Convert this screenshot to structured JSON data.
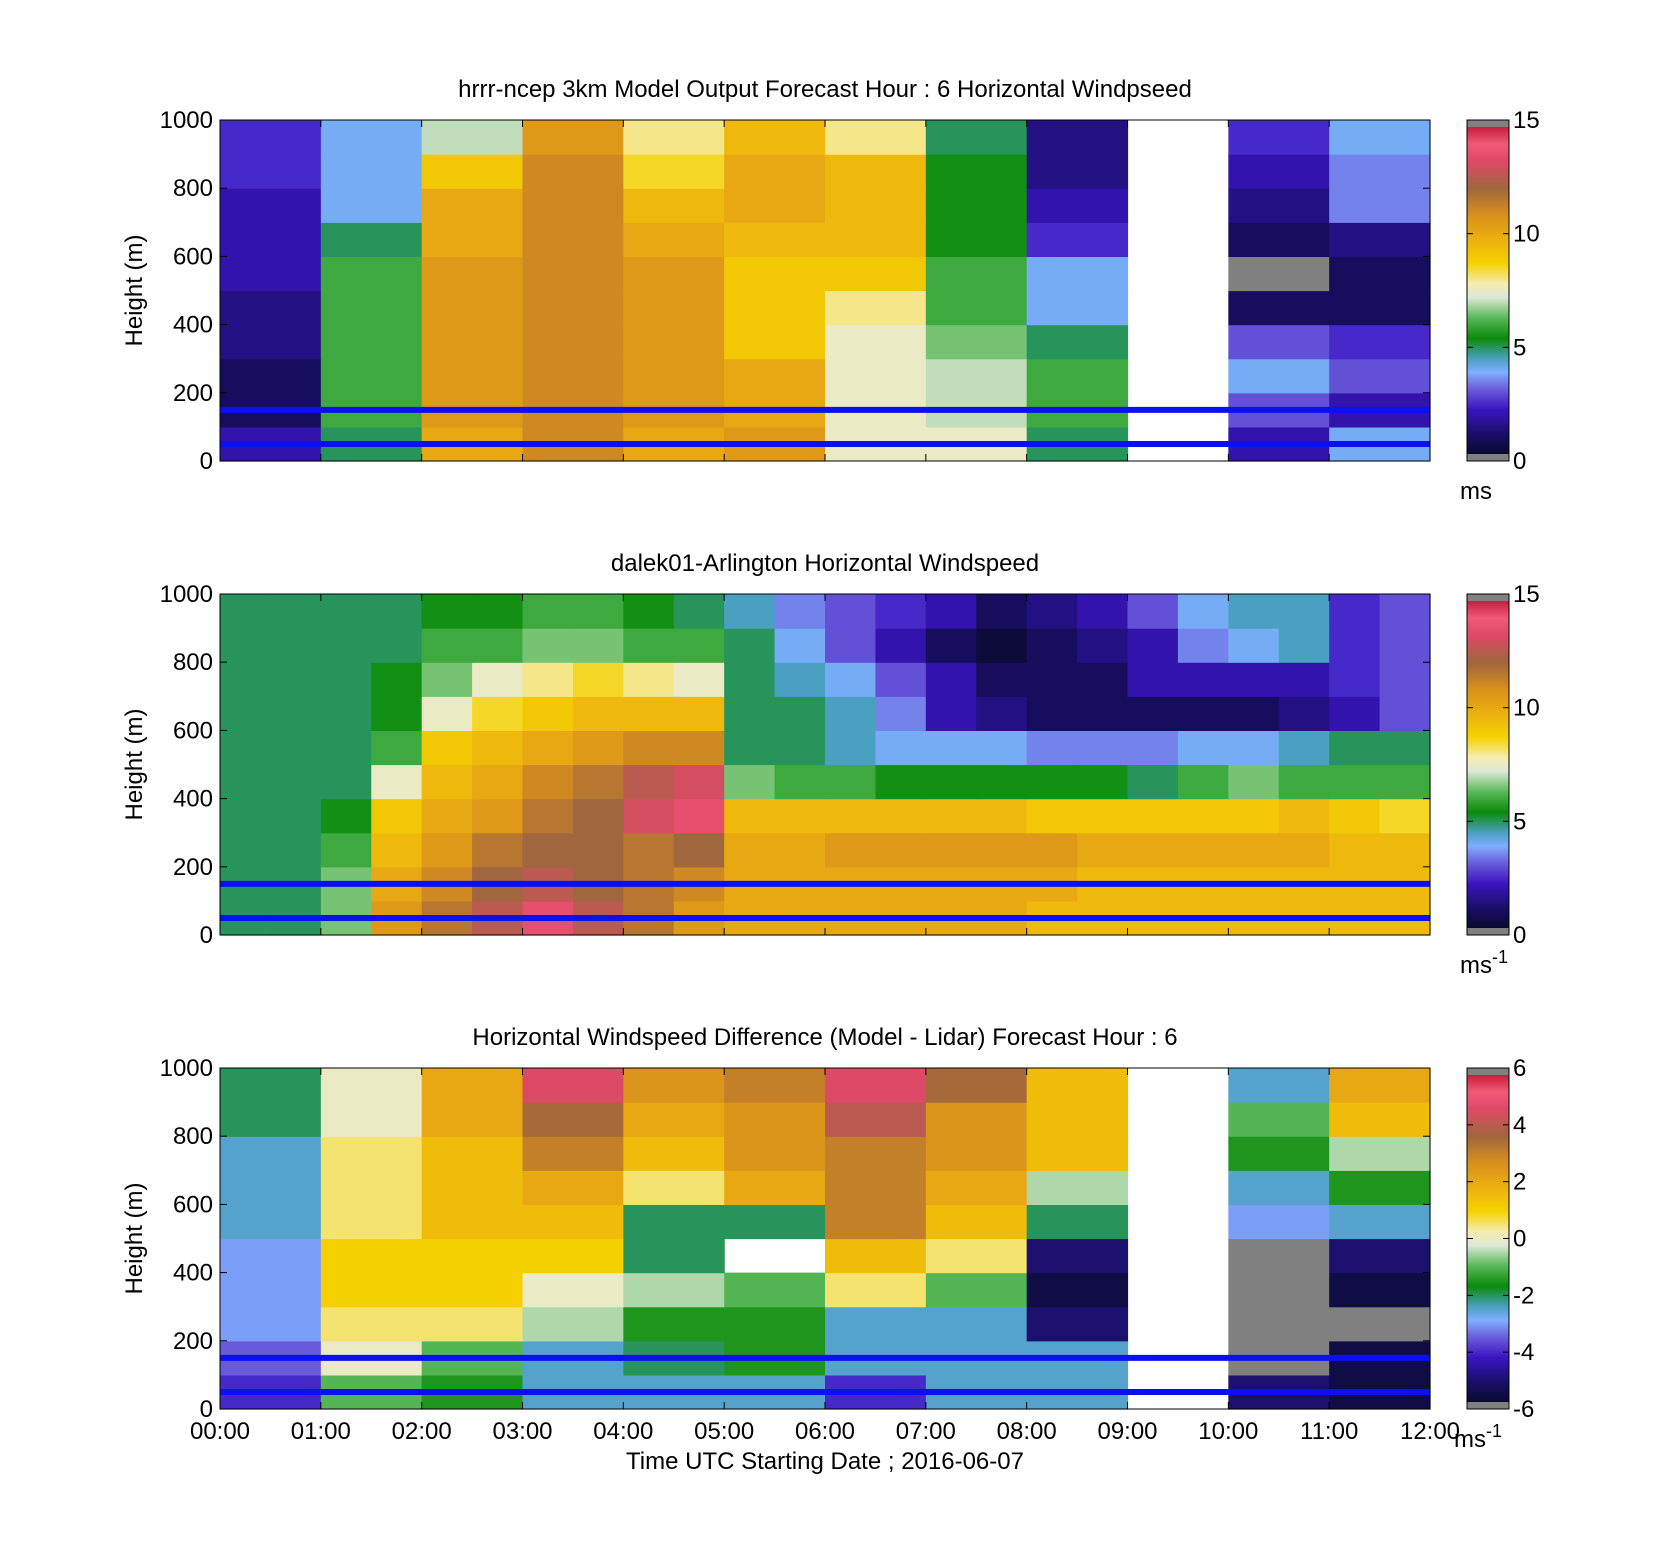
{
  "chart_data": [
    {
      "type": "heatmap",
      "title": "hrrr-ncep 3km Model Output   Forecast Hour : 6 Horizontal Windpseed",
      "ylabel": "Height (m)",
      "xlabel": "",
      "ylim": [
        0,
        1000
      ],
      "y_ticks": [
        "0",
        "200",
        "400",
        "600",
        "800",
        "1000"
      ],
      "x_ticks": [],
      "colorbar": {
        "ticks": [
          "0",
          "5",
          "10",
          "15"
        ],
        "range": [
          0,
          15
        ],
        "unit": "ms",
        "unit_sup": ""
      },
      "x_hours": [
        0,
        1,
        2,
        3,
        4,
        5,
        6,
        7,
        8,
        9,
        10,
        11
      ],
      "y_heights": [
        50,
        150,
        250,
        350,
        450,
        550,
        650,
        750,
        850,
        950
      ],
      "values": [
        [
          2.0,
          5.0,
          10.0,
          11.0,
          10.0,
          10.5,
          7.5,
          7.5,
          5.0,
          null,
          2.0,
          4.0
        ],
        [
          1.0,
          6.0,
          10.5,
          11.0,
          10.5,
          10.0,
          7.5,
          7.0,
          6.0,
          null,
          3.0,
          2.0
        ],
        [
          1.0,
          6.0,
          10.5,
          11.0,
          10.5,
          10.0,
          7.5,
          7.0,
          6.0,
          null,
          4.0,
          3.0
        ],
        [
          1.5,
          6.0,
          10.5,
          11.0,
          10.5,
          9.0,
          7.5,
          6.5,
          5.0,
          null,
          3.0,
          2.5
        ],
        [
          1.5,
          6.0,
          10.5,
          11.0,
          10.5,
          9.0,
          8.0,
          6.0,
          4.0,
          null,
          1.0,
          1.0
        ],
        [
          2.0,
          6.0,
          10.5,
          11.0,
          10.5,
          9.0,
          9.0,
          6.0,
          4.0,
          null,
          0.0,
          1.0
        ],
        [
          2.0,
          5.0,
          10.0,
          11.0,
          10.0,
          9.5,
          9.5,
          5.5,
          2.5,
          null,
          1.0,
          1.5
        ],
        [
          2.0,
          4.0,
          10.0,
          11.0,
          9.5,
          10.0,
          9.5,
          5.5,
          2.0,
          null,
          1.5,
          3.5
        ],
        [
          2.5,
          4.0,
          9.0,
          11.0,
          8.5,
          10.0,
          9.5,
          5.5,
          1.5,
          null,
          2.0,
          3.5
        ],
        [
          2.5,
          4.0,
          7.0,
          10.5,
          8.0,
          9.5,
          8.0,
          5.0,
          1.5,
          null,
          2.5,
          4.0
        ]
      ],
      "reference_lines_m": [
        150,
        50
      ]
    },
    {
      "type": "heatmap",
      "title": "dalek01-Arlington  Horizontal Windspeed",
      "ylabel": "Height (m)",
      "xlabel": "",
      "ylim": [
        0,
        1000
      ],
      "y_ticks": [
        "0",
        "200",
        "400",
        "600",
        "800",
        "1000"
      ],
      "x_ticks": [],
      "colorbar": {
        "ticks": [
          "0",
          "5",
          "10",
          "15"
        ],
        "range": [
          0,
          15
        ],
        "unit": "ms",
        "unit_sup": "-1"
      },
      "x_hours": [
        0,
        0.5,
        1,
        1.5,
        2,
        2.5,
        3,
        3.5,
        4,
        4.5,
        5,
        5.5,
        6,
        6.5,
        7,
        7.5,
        8,
        8.5,
        9,
        9.5,
        10,
        10.5,
        11,
        11.5
      ],
      "y_heights": [
        50,
        150,
        250,
        350,
        450,
        550,
        650,
        750,
        850,
        950
      ],
      "values": [
        [
          5.0,
          5.0,
          6.5,
          10.5,
          11.5,
          12.5,
          13.5,
          12.5,
          11.5,
          10.5,
          10.0,
          10.0,
          10.0,
          10.0,
          10.0,
          10.0,
          9.5,
          9.5,
          9.5,
          9.5,
          9.5,
          9.5,
          9.5,
          9.5
        ],
        [
          5.0,
          5.0,
          6.5,
          10.0,
          11.0,
          12.0,
          12.5,
          12.0,
          11.5,
          11.0,
          10.0,
          10.0,
          10.0,
          10.0,
          10.0,
          10.0,
          10.0,
          9.5,
          9.5,
          9.5,
          9.5,
          9.5,
          9.5,
          9.5
        ],
        [
          5.0,
          5.0,
          6.0,
          9.5,
          10.5,
          11.5,
          12.0,
          12.0,
          11.5,
          12.0,
          10.0,
          10.0,
          10.5,
          10.5,
          10.5,
          10.5,
          10.5,
          10.0,
          10.0,
          10.0,
          10.0,
          10.0,
          9.5,
          9.5
        ],
        [
          5.0,
          5.0,
          5.5,
          9.0,
          10.0,
          10.5,
          11.5,
          12.0,
          13.0,
          13.5,
          9.5,
          9.5,
          9.5,
          9.5,
          9.5,
          9.5,
          9.0,
          9.0,
          9.0,
          9.0,
          9.0,
          9.5,
          9.0,
          8.5
        ],
        [
          5.0,
          5.0,
          5.0,
          7.5,
          9.5,
          10.0,
          11.0,
          11.5,
          12.5,
          13.0,
          6.5,
          6.0,
          6.0,
          5.5,
          5.5,
          5.5,
          5.5,
          5.5,
          5.0,
          6.0,
          6.5,
          6.0,
          6.0,
          6.0
        ],
        [
          5.0,
          5.0,
          5.0,
          6.0,
          9.0,
          9.5,
          10.0,
          10.5,
          11.0,
          11.0,
          5.0,
          5.0,
          4.5,
          4.0,
          4.0,
          4.0,
          3.5,
          3.5,
          3.5,
          4.0,
          4.0,
          4.5,
          5.0,
          5.0
        ],
        [
          5.0,
          5.0,
          5.0,
          5.5,
          7.5,
          8.5,
          9.0,
          9.5,
          9.5,
          9.5,
          5.0,
          5.0,
          4.5,
          3.5,
          2.0,
          1.5,
          1.0,
          1.0,
          1.0,
          1.0,
          1.0,
          1.5,
          2.0,
          3.0
        ],
        [
          5.0,
          5.0,
          5.0,
          5.5,
          6.5,
          7.5,
          8.0,
          8.5,
          8.0,
          7.5,
          5.0,
          4.5,
          4.0,
          3.0,
          2.0,
          1.0,
          1.0,
          1.0,
          2.0,
          2.0,
          2.0,
          2.0,
          2.5,
          3.0
        ],
        [
          5.0,
          5.0,
          5.0,
          5.0,
          6.0,
          6.0,
          6.5,
          6.5,
          6.0,
          6.0,
          5.0,
          4.0,
          3.0,
          2.0,
          1.0,
          0.5,
          1.0,
          1.5,
          2.0,
          3.5,
          4.0,
          4.5,
          2.5,
          3.0
        ],
        [
          5.0,
          5.0,
          5.0,
          5.0,
          5.5,
          5.5,
          6.0,
          6.0,
          5.5,
          5.0,
          4.5,
          3.5,
          3.0,
          2.5,
          2.0,
          1.0,
          1.5,
          2.0,
          3.0,
          4.0,
          4.5,
          4.5,
          2.5,
          3.0
        ]
      ],
      "reference_lines_m": [
        150,
        50
      ]
    },
    {
      "type": "heatmap",
      "title": "Horizontal Windspeed Difference (Model - Lidar) Forecast Hour : 6",
      "ylabel": "Height (m)",
      "xlabel": "Time UTC  Starting Date ; 2016-06-07",
      "ylim": [
        0,
        1000
      ],
      "y_ticks": [
        "0",
        "200",
        "400",
        "600",
        "800",
        "1000"
      ],
      "x_ticks": [
        "00:00",
        "01:00",
        "02:00",
        "03:00",
        "04:00",
        "05:00",
        "06:00",
        "07:00",
        "08:00",
        "09:00",
        "10:00",
        "11:00",
        "12:00"
      ],
      "colorbar": {
        "ticks": [
          "-6",
          "-4",
          "-2",
          "0",
          "2",
          "4",
          "6"
        ],
        "range": [
          -6,
          6
        ],
        "unit": "ms",
        "unit_sup": "-1"
      },
      "x_hours": [
        0,
        1,
        2,
        3,
        4,
        5,
        6,
        7,
        8,
        9,
        10,
        11
      ],
      "y_heights": [
        50,
        150,
        250,
        350,
        450,
        550,
        650,
        750,
        850,
        950
      ],
      "values": [
        [
          -4.0,
          -1.0,
          -1.5,
          -2.5,
          -2.5,
          -2.5,
          -4.0,
          -2.5,
          -2.5,
          null,
          -5.0,
          -5.5
        ],
        [
          -3.5,
          0.0,
          -1.0,
          -2.5,
          -2.0,
          -1.5,
          -2.5,
          -2.5,
          -2.5,
          null,
          -6.0,
          -5.5
        ],
        [
          -3.0,
          0.5,
          0.5,
          -0.5,
          -1.5,
          -1.5,
          -2.5,
          -2.5,
          -5.0,
          null,
          -6.0,
          -6.0
        ],
        [
          -3.0,
          1.0,
          1.0,
          0.0,
          -0.5,
          -1.0,
          0.5,
          -1.0,
          -5.5,
          null,
          -6.0,
          -5.5
        ],
        [
          -3.0,
          1.0,
          1.0,
          1.0,
          -2.0,
          null,
          1.5,
          0.5,
          -5.0,
          null,
          -6.0,
          -5.0
        ],
        [
          -2.5,
          0.5,
          1.5,
          1.5,
          -2.0,
          -2.0,
          3.0,
          1.5,
          -2.0,
          null,
          -3.0,
          -2.5
        ],
        [
          -2.5,
          0.5,
          1.5,
          2.0,
          0.5,
          2.0,
          3.0,
          2.0,
          -0.5,
          null,
          -2.5,
          -1.5
        ],
        [
          -2.5,
          0.5,
          1.5,
          3.0,
          1.5,
          2.5,
          3.0,
          2.5,
          1.5,
          null,
          -1.5,
          -0.5
        ],
        [
          -2.0,
          0.0,
          2.0,
          3.5,
          2.0,
          2.5,
          4.0,
          2.5,
          1.5,
          null,
          -1.0,
          1.5
        ],
        [
          -2.0,
          0.0,
          2.0,
          4.5,
          2.5,
          3.0,
          4.5,
          3.5,
          1.5,
          null,
          -2.5,
          2.0
        ]
      ],
      "reference_lines_m": [
        150,
        50
      ]
    }
  ]
}
